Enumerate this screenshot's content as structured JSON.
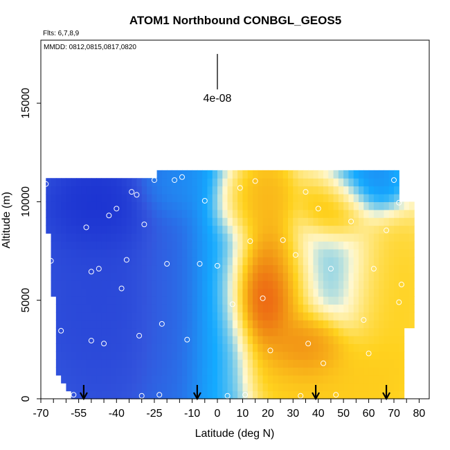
{
  "chart_data": {
    "type": "heatmap",
    "title": "ATOM1 Northbound CONBGL_GEOS5",
    "flights_note": "Flts: 6,7,8,9",
    "dates_note": "MMDD: 0812,0815,0817,0820",
    "xlabel": "Latitude (deg N)",
    "ylabel": "Altitude (m)",
    "xlim": [
      -70,
      84
    ],
    "ylim": [
      0,
      18200
    ],
    "x_tick_labels": [
      "-70",
      "-55",
      "-40",
      "-25",
      "-10",
      "0",
      "10",
      "20",
      "30",
      "40",
      "50",
      "60",
      "70",
      "80"
    ],
    "x_tick_positions": [
      -70,
      -55,
      -40,
      -25,
      -10,
      0,
      10,
      20,
      30,
      40,
      50,
      60,
      70,
      80
    ],
    "y_ticks": [
      0,
      5000,
      10000,
      15000
    ],
    "y_tick_labels": [
      "0",
      "5000",
      "10000",
      "15000"
    ],
    "scale_bar": {
      "label": "4e-08",
      "x": 0,
      "y_bottom": 15700,
      "y_top": 17500
    },
    "flight_arrows_lat": [
      -53,
      -8,
      39,
      67
    ],
    "colors": {
      "very_low": "#0a19c8",
      "low": "#3355dd",
      "mid_low": "#14aaff",
      "neutral": "#fff8d0",
      "mid_high": "#ffd21e",
      "high": "#f08c14",
      "very_high": "#eb4614"
    },
    "regions": [
      {
        "lat": [
          -68,
          -26
        ],
        "alt": [
          0,
          11000
        ],
        "level": -2.6
      },
      {
        "lat": [
          -26,
          -8
        ],
        "alt": [
          0,
          11000
        ],
        "level": -2.0
      },
      {
        "lat": [
          -8,
          8
        ],
        "alt": [
          0,
          11000
        ],
        "level": -1.0
      },
      {
        "lat": [
          -60,
          -35
        ],
        "alt": [
          8500,
          11000
        ],
        "level": -3.2
      },
      {
        "lat": [
          -25,
          -5
        ],
        "alt": [
          10000,
          11400
        ],
        "level": -1.3
      },
      {
        "lat": [
          5,
          22
        ],
        "alt": [
          9200,
          11000
        ],
        "level": 1.8
      },
      {
        "lat": [
          10,
          32
        ],
        "alt": [
          3500,
          7500
        ],
        "level": 2.8
      },
      {
        "lat": [
          16,
          22
        ],
        "alt": [
          4500,
          5800
        ],
        "level": 3.6
      },
      {
        "lat": [
          30,
          45
        ],
        "alt": [
          2000,
          3500
        ],
        "level": 2.9
      },
      {
        "lat": [
          40,
          54
        ],
        "alt": [
          9000,
          10500
        ],
        "level": 2.3
      },
      {
        "lat": [
          47,
          65
        ],
        "alt": [
          10000,
          11400
        ],
        "level": -1.6
      },
      {
        "lat": [
          32,
          58
        ],
        "alt": [
          4000,
          8500
        ],
        "level": -0.7
      },
      {
        "lat": [
          25,
          70
        ],
        "alt": [
          0,
          2500
        ],
        "level": 1.4
      },
      {
        "lat": [
          55,
          75
        ],
        "alt": [
          3000,
          8000
        ],
        "level": 1.3
      }
    ],
    "sample_points": [
      {
        "lat": -68,
        "alt": 10900
      },
      {
        "lat": -66,
        "alt": 7000
      },
      {
        "lat": -68,
        "alt": 3200
      },
      {
        "lat": -62,
        "alt": 3450
      },
      {
        "lat": -57,
        "alt": 200
      },
      {
        "lat": -52,
        "alt": 8700
      },
      {
        "lat": -50,
        "alt": 6450
      },
      {
        "lat": -50,
        "alt": 2950
      },
      {
        "lat": -47,
        "alt": 6600
      },
      {
        "lat": -45,
        "alt": 2800
      },
      {
        "lat": -43,
        "alt": 9300
      },
      {
        "lat": -40,
        "alt": 9650
      },
      {
        "lat": -38,
        "alt": 5600
      },
      {
        "lat": -36,
        "alt": 7050
      },
      {
        "lat": -34,
        "alt": 10500
      },
      {
        "lat": -32,
        "alt": 10350
      },
      {
        "lat": -31,
        "alt": 3200
      },
      {
        "lat": -29,
        "alt": 8850
      },
      {
        "lat": -30,
        "alt": 150
      },
      {
        "lat": -25,
        "alt": 11100
      },
      {
        "lat": -23,
        "alt": 200
      },
      {
        "lat": -22,
        "alt": 3800
      },
      {
        "lat": -20,
        "alt": 6850
      },
      {
        "lat": -17,
        "alt": 11100
      },
      {
        "lat": -14,
        "alt": 11250
      },
      {
        "lat": -12,
        "alt": 3000
      },
      {
        "lat": -7,
        "alt": 6850
      },
      {
        "lat": -5,
        "alt": 10050
      },
      {
        "lat": 0,
        "alt": 6750
      },
      {
        "lat": 4,
        "alt": 150
      },
      {
        "lat": 6,
        "alt": 4800
      },
      {
        "lat": 9,
        "alt": 10700
      },
      {
        "lat": 11,
        "alt": 200
      },
      {
        "lat": 13,
        "alt": 8000
      },
      {
        "lat": 15,
        "alt": 11050
      },
      {
        "lat": 18,
        "alt": 5100
      },
      {
        "lat": 21,
        "alt": 2450
      },
      {
        "lat": 26,
        "alt": 8050
      },
      {
        "lat": 31,
        "alt": 7300
      },
      {
        "lat": 33,
        "alt": 150
      },
      {
        "lat": 35,
        "alt": 10500
      },
      {
        "lat": 36,
        "alt": 2800
      },
      {
        "lat": 40,
        "alt": 9650
      },
      {
        "lat": 42,
        "alt": 1800
      },
      {
        "lat": 45,
        "alt": 6600
      },
      {
        "lat": 47,
        "alt": 200
      },
      {
        "lat": 53,
        "alt": 9000
      },
      {
        "lat": 58,
        "alt": 4000
      },
      {
        "lat": 60,
        "alt": 2300
      },
      {
        "lat": 62,
        "alt": 6600
      },
      {
        "lat": 67,
        "alt": 8550
      },
      {
        "lat": 70,
        "alt": 11100
      },
      {
        "lat": 72,
        "alt": 9950
      },
      {
        "lat": 73,
        "alt": 5800
      },
      {
        "lat": 72,
        "alt": 4900
      }
    ],
    "grid": false,
    "legend": "none"
  }
}
